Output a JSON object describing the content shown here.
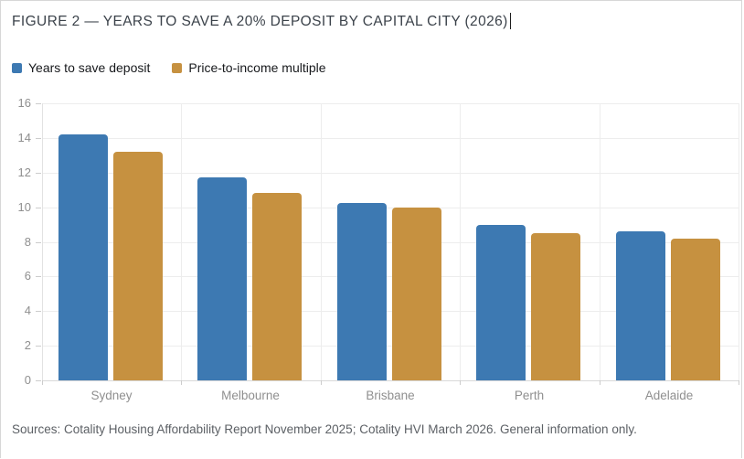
{
  "title": "FIGURE 2 — YEARS TO SAVE A 20% DEPOSIT BY CAPITAL CITY (2026)",
  "legend": [
    {
      "label": "Years to save deposit",
      "color": "#3d79b2"
    },
    {
      "label": "Price-to-income multiple",
      "color": "#c69140"
    }
  ],
  "source_note": "Sources: Cotality Housing Affordability Report November 2025; Cotality HVI March 2026. General information only.",
  "colors": {
    "series_blue": "#3d79b2",
    "series_gold": "#c69140",
    "grid": "#ededed",
    "axis_text": "#8f8f8f",
    "title_text": "#3b424a"
  },
  "chart_data": {
    "type": "bar",
    "title": "FIGURE 2 — YEARS TO SAVE A 20% DEPOSIT BY CAPITAL CITY (2026)",
    "categories": [
      "Sydney",
      "Melbourne",
      "Brisbane",
      "Perth",
      "Adelaide"
    ],
    "series": [
      {
        "name": "Years to save deposit",
        "color": "#3d79b2",
        "values": [
          14.2,
          11.7,
          10.25,
          9.0,
          8.6
        ]
      },
      {
        "name": "Price-to-income multiple",
        "color": "#c69140",
        "values": [
          13.2,
          10.8,
          10.0,
          8.5,
          8.2
        ]
      }
    ],
    "xlabel": "",
    "ylabel": "",
    "ylim": [
      0,
      16
    ],
    "ytick_step": 2,
    "grid": true,
    "legend_position": "top-left"
  }
}
